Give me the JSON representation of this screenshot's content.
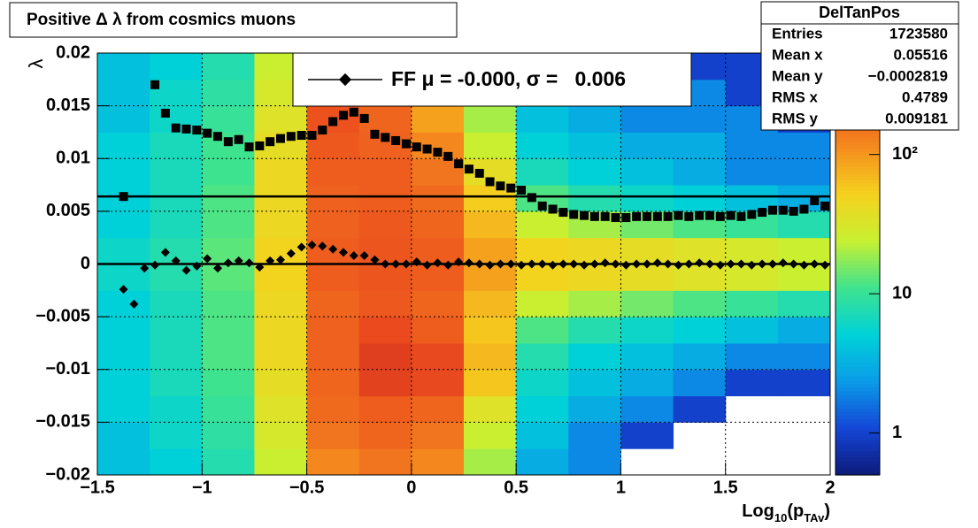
{
  "chart_data": {
    "type": "heatmap",
    "title": "Positive Δ λ from cosmics muons",
    "x_label": [
      "Log",
      "10",
      "(p",
      "TAv",
      ")"
    ],
    "y_label": "λ",
    "xlim": [
      -1.5,
      2
    ],
    "ylim": [
      -0.02,
      0.02
    ],
    "zlim": [
      0.5,
      535
    ],
    "zlog": true,
    "grid": true,
    "xticks": [
      {
        "value": -1.5,
        "label": "−1.5"
      },
      {
        "value": -1,
        "label": "−1"
      },
      {
        "value": -0.5,
        "label": "−0.5"
      },
      0,
      0.5,
      1,
      1.5,
      2
    ],
    "yticks": [
      {
        "value": -0.02,
        "label": "−0.02"
      },
      {
        "value": -0.015,
        "label": "−0.015"
      },
      {
        "value": -0.01,
        "label": "−0.01"
      },
      {
        "value": -0.005,
        "label": "−0.005"
      },
      0,
      0.005,
      0.01,
      0.015,
      0.02
    ],
    "zticks": [
      1,
      10,
      {
        "value": 100,
        "label": "10²"
      }
    ],
    "palette": [
      "#0d1a7a",
      "#1446d6",
      "#0a9be8",
      "#00d2d8",
      "#3fe38e",
      "#c8f032",
      "#f5d21e",
      "#f58c1e",
      "#eb4b1e",
      "#c8281e"
    ],
    "xbins": [
      -1.5,
      -1.25,
      -1,
      -0.75,
      -0.5,
      -0.25,
      0,
      0.25,
      0.5,
      0.75,
      1,
      1.25,
      1.5,
      1.75,
      2
    ],
    "ybins": [
      -0.02,
      -0.0175,
      -0.015,
      -0.0125,
      -0.01,
      -0.0075,
      -0.005,
      -0.0025,
      0,
      0.0025,
      0.005,
      0.0075,
      0.01,
      0.0125,
      0.015,
      0.0175,
      0.02
    ],
    "z": [
      [
        4,
        5,
        8,
        25,
        120,
        150,
        120,
        20,
        3,
        2,
        0,
        0,
        0,
        0
      ],
      [
        4,
        6,
        9,
        30,
        150,
        180,
        150,
        25,
        4,
        2,
        1,
        0,
        0,
        0
      ],
      [
        5,
        6,
        10,
        35,
        170,
        200,
        180,
        35,
        5,
        3,
        2,
        1,
        0,
        0
      ],
      [
        5,
        7,
        11,
        40,
        180,
        300,
        260,
        60,
        6,
        4,
        3,
        2,
        1,
        1
      ],
      [
        5,
        7,
        12,
        45,
        190,
        320,
        260,
        70,
        8,
        5,
        4,
        3,
        2,
        2
      ],
      [
        5,
        7,
        12,
        45,
        190,
        250,
        200,
        60,
        12,
        8,
        6,
        5,
        4,
        3
      ],
      [
        5,
        7,
        12,
        45,
        180,
        210,
        180,
        70,
        25,
        20,
        15,
        12,
        10,
        8
      ],
      [
        6,
        8,
        13,
        50,
        200,
        220,
        200,
        90,
        50,
        45,
        40,
        35,
        30,
        25
      ],
      [
        6,
        8,
        13,
        50,
        200,
        220,
        200,
        90,
        50,
        45,
        40,
        35,
        30,
        25
      ],
      [
        5,
        7,
        12,
        45,
        190,
        210,
        180,
        70,
        25,
        20,
        15,
        12,
        10,
        8
      ],
      [
        5,
        7,
        12,
        45,
        190,
        200,
        170,
        55,
        12,
        8,
        6,
        5,
        4,
        3
      ],
      [
        5,
        7,
        11,
        45,
        200,
        200,
        150,
        40,
        7,
        5,
        4,
        3,
        2,
        2
      ],
      [
        5,
        7,
        11,
        40,
        210,
        190,
        120,
        25,
        5,
        4,
        3,
        3,
        2,
        2
      ],
      [
        4,
        6,
        10,
        35,
        230,
        180,
        90,
        20,
        4,
        3,
        2,
        2,
        2,
        1
      ],
      [
        4,
        6,
        9,
        30,
        200,
        150,
        70,
        15,
        4,
        3,
        2,
        2,
        1,
        1
      ],
      [
        4,
        5,
        8,
        25,
        120,
        100,
        50,
        12,
        3,
        2,
        2,
        1,
        1,
        1
      ]
    ],
    "hlines": [
      0.0064,
      0
    ],
    "x": [
      -1.375,
      -1.325,
      -1.275,
      -1.225,
      -1.175,
      -1.125,
      -1.075,
      -1.025,
      -0.975,
      -0.925,
      -0.875,
      -0.825,
      -0.775,
      -0.725,
      -0.675,
      -0.625,
      -0.575,
      -0.525,
      -0.475,
      -0.425,
      -0.375,
      -0.325,
      -0.275,
      -0.225,
      -0.175,
      -0.125,
      -0.075,
      -0.025,
      0.025,
      0.075,
      0.125,
      0.175,
      0.225,
      0.275,
      0.325,
      0.375,
      0.425,
      0.475,
      0.525,
      0.575,
      0.625,
      0.675,
      0.725,
      0.775,
      0.825,
      0.875,
      0.925,
      0.975,
      1.025,
      1.075,
      1.125,
      1.175,
      1.225,
      1.275,
      1.325,
      1.375,
      1.425,
      1.475,
      1.525,
      1.575,
      1.625,
      1.675,
      1.725,
      1.775,
      1.825,
      1.875,
      1.925,
      1.975
    ],
    "series": [
      {
        "name": "FF μ = -0.000, σ =   0.006",
        "marker": "diamond",
        "color": "#000000",
        "values": [
          -0.0024,
          -0.0038,
          -0.0004,
          -0.0001,
          0.0011,
          0.0003,
          -0.0006,
          -0.0002,
          0.0005,
          -0.0004,
          0.0001,
          0.0003,
          0.0001,
          -0.0003,
          0.0003,
          0.0004,
          0.001,
          0.0016,
          0.0018,
          0.0017,
          0.0014,
          0.0011,
          0.0008,
          0.0008,
          0.0004,
          0,
          0,
          0,
          0.0002,
          -0.0001,
          0.0001,
          -0.0001,
          0.0002,
          0.0001,
          0,
          -0.0001,
          0,
          0,
          -0.0001,
          0,
          0,
          -0.0001,
          0,
          0,
          -0.0001,
          0,
          0.0001,
          0,
          -0.0001,
          0,
          0,
          0.0001,
          0,
          -0.0001,
          0,
          0.0001,
          0,
          -0.0001,
          0,
          0,
          -0.0001,
          0,
          0,
          0.0001,
          0,
          -0.0001,
          0,
          -0.0001
        ]
      },
      {
        "marker": "square",
        "color": "#000000",
        "values": [
          0.0064,
          null,
          null,
          0.017,
          0.0143,
          0.0129,
          0.0128,
          0.0127,
          0.0124,
          0.0121,
          0.0116,
          0.0118,
          0.0111,
          0.0112,
          0.0116,
          0.0119,
          0.0121,
          0.0122,
          0.0122,
          0.0127,
          0.0135,
          0.0141,
          0.0144,
          0.0138,
          0.0123,
          0.012,
          0.0117,
          0.0114,
          0.0111,
          0.0109,
          0.0106,
          0.0102,
          0.0095,
          0.009,
          0.0086,
          0.0078,
          0.0074,
          0.0072,
          0.007,
          0.0063,
          0.0055,
          0.0052,
          0.0049,
          0.0047,
          0.0046,
          0.0045,
          0.0045,
          0.0044,
          0.0044,
          0.0045,
          0.0045,
          0.0045,
          0.0045,
          0.0046,
          0.0045,
          0.0046,
          0.0046,
          0.0045,
          0.0046,
          0.0045,
          0.0047,
          0.0049,
          0.0051,
          0.0051,
          0.005,
          0.0052,
          0.006,
          0.0055
        ]
      }
    ],
    "stats": {
      "title": "DelTanPos",
      "rows": [
        [
          "Entries",
          "1723580"
        ],
        [
          "Mean x",
          "0.05516"
        ],
        [
          "Mean y",
          "−0.0002819"
        ],
        [
          "RMS x",
          "0.4789"
        ],
        [
          "RMS y",
          "0.009181"
        ]
      ]
    }
  }
}
